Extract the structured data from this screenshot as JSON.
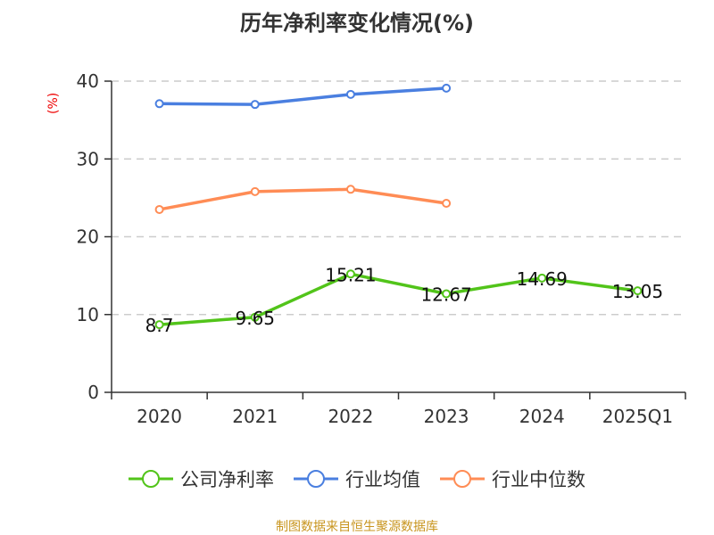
{
  "chart_data": {
    "type": "line",
    "title": "历年净利率变化情况(%)",
    "ylabel": "(%)",
    "xlabel": "",
    "ylim": [
      0,
      40
    ],
    "yticks": [
      0,
      10,
      20,
      30,
      40
    ],
    "grid": true,
    "legend_position": "bottom",
    "categories": [
      "2020",
      "2021",
      "2022",
      "2023",
      "2024",
      "2025Q1"
    ],
    "series": [
      {
        "name": "公司净利率",
        "color": "#52c41a",
        "values": [
          8.7,
          9.65,
          15.21,
          12.67,
          14.69,
          13.05
        ],
        "labels": [
          "8.7",
          "9.65",
          "15.21",
          "12.67",
          "14.69",
          "13.05"
        ]
      },
      {
        "name": "行业均值",
        "color": "#4a7fe0",
        "values": [
          37.1,
          37.0,
          38.3,
          39.1,
          null,
          null
        ]
      },
      {
        "name": "行业中位数",
        "color": "#ff8c55",
        "values": [
          23.5,
          25.8,
          26.1,
          24.3,
          null,
          null
        ]
      }
    ]
  },
  "source": "制图数据来自恒生聚源数据库"
}
